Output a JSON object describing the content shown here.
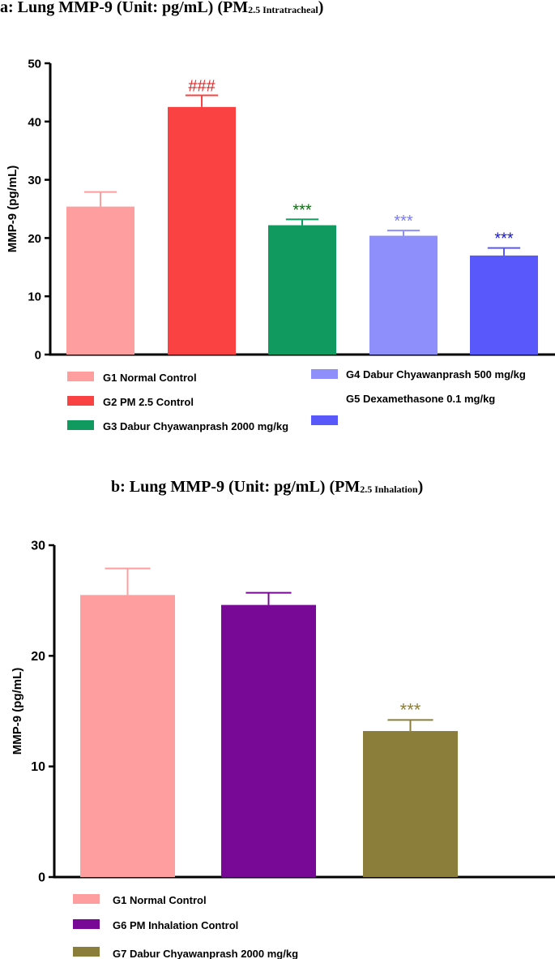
{
  "chart_data": [
    {
      "id": "a",
      "type": "bar",
      "title_main": "a: Lung MMP-9 (Unit: pg/mL) (PM",
      "title_sub": "2.5 Intratracheal",
      "title_close": ")",
      "ylabel": "MMP-9 (pg/mL)",
      "xlabel": "",
      "ylim": [
        0,
        50
      ],
      "yticks": [
        0,
        10,
        20,
        30,
        40,
        50
      ],
      "categories": [
        "G1",
        "G2",
        "G3",
        "G4",
        "G5"
      ],
      "values": [
        25.4,
        42.5,
        22.2,
        20.4,
        17.0
      ],
      "errors": [
        2.5,
        2.0,
        1.0,
        0.9,
        1.3
      ],
      "colors": [
        "#ff9e9e",
        "#fb4242",
        "#119a60",
        "#8f8ffb",
        "#5858fb"
      ],
      "annotations": [
        "",
        "###",
        "***",
        "***",
        "***"
      ],
      "annotation_colors": [
        "",
        "#e52525",
        "#0e6b12",
        "#7b7bf5",
        "#1515e0"
      ],
      "legend": [
        {
          "label": "G1 Normal Control",
          "color": "#ff9e9e"
        },
        {
          "label": "G2 PM 2.5 Control",
          "color": "#fb4242"
        },
        {
          "label": "G3 Dabur Chyawanprash 2000 mg/kg",
          "color": "#119a60"
        },
        {
          "label": "G4 Dabur Chyawanprash 500 mg/kg",
          "color": "#8f8ffb"
        },
        {
          "label": "G5 Dexamethasone 0.1 mg/kg",
          "color": "#5858fb"
        }
      ]
    },
    {
      "id": "b",
      "type": "bar",
      "title_main": "b: Lung MMP-9 (Unit: pg/mL) (PM",
      "title_sub": "2.5 Inhalation",
      "title_close": ")",
      "ylabel": "MMP-9 (pg/mL)",
      "xlabel": "",
      "ylim": [
        0,
        30
      ],
      "yticks": [
        0,
        10,
        20,
        30
      ],
      "categories": [
        "G1",
        "G6",
        "G7"
      ],
      "values": [
        25.5,
        24.6,
        13.2
      ],
      "errors": [
        2.4,
        1.1,
        1.0
      ],
      "colors": [
        "#ff9e9e",
        "#780896",
        "#8b7d3a"
      ],
      "annotations": [
        "",
        "",
        "***"
      ],
      "annotation_colors": [
        "",
        "",
        "#8b7d3a"
      ],
      "legend": [
        {
          "label": "G1 Normal Control",
          "color": "#ff9e9e"
        },
        {
          "label": "G6 PM Inhalation Control",
          "color": "#780896"
        },
        {
          "label": "G7 Dabur Chyawanprash 2000 mg/kg",
          "color": "#8b7d3a"
        }
      ]
    }
  ]
}
